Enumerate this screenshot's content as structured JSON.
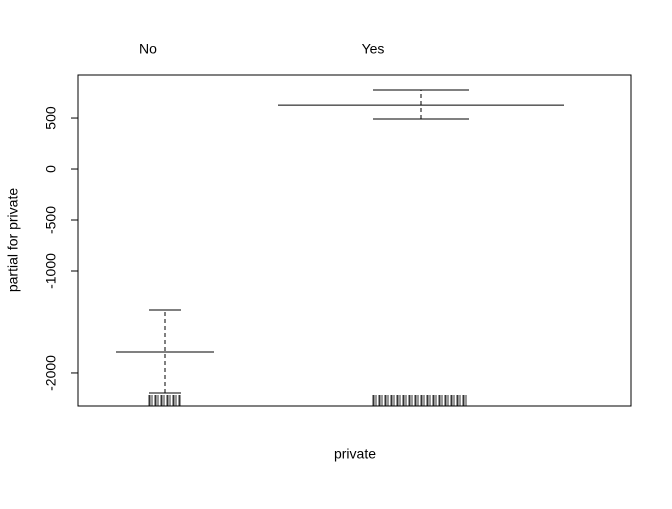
{
  "chart_data": {
    "type": "errorbar",
    "categories": [
      "No",
      "Yes"
    ],
    "values": [
      -1794,
      627
    ],
    "lower": [
      -2196,
      490
    ],
    "upper": [
      -1382,
      775
    ],
    "color": "#000000",
    "xlabel": "private",
    "ylabel": "partial for private",
    "ylim": [
      -2324,
      922
    ],
    "yticks": [
      500,
      0,
      -500,
      -1000,
      -2000
    ]
  }
}
